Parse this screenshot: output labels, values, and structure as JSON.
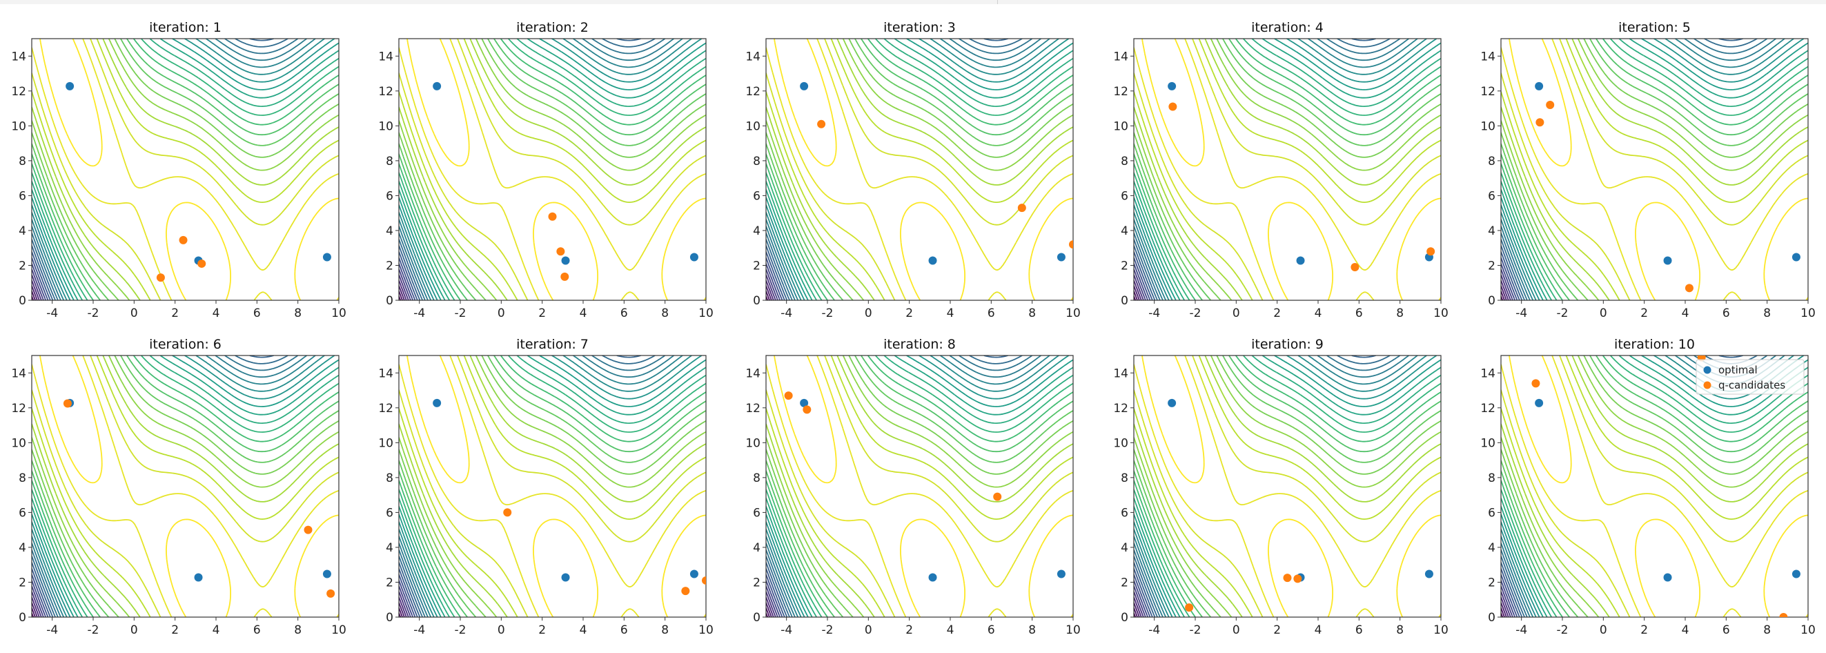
{
  "colors": {
    "optimal": "#1f77b4",
    "q_candidates": "#ff7f0e",
    "colormap": "viridis (reversed: low values yellow)"
  },
  "legend_labels": [
    "optimal",
    "q-candidates"
  ],
  "chart_data": [
    {
      "type": "contour+scatter",
      "title": "iteration: 1",
      "xlim": [
        -5,
        10
      ],
      "ylim": [
        0,
        15
      ],
      "xticks": [
        -4,
        -2,
        0,
        2,
        4,
        6,
        8,
        10
      ],
      "yticks": [
        0,
        2,
        4,
        6,
        8,
        10,
        12,
        14
      ],
      "series": [
        {
          "name": "optimal",
          "x": [
            -3.14159,
            3.14159,
            9.42478
          ],
          "y": [
            12.275,
            2.275,
            2.475
          ]
        },
        {
          "name": "q-candidates",
          "x": [
            1.3,
            2.4,
            3.3
          ],
          "y": [
            1.3,
            3.45,
            2.1
          ]
        }
      ]
    },
    {
      "type": "contour+scatter",
      "title": "iteration: 2",
      "xlim": [
        -5,
        10
      ],
      "ylim": [
        0,
        15
      ],
      "xticks": [
        -4,
        -2,
        0,
        2,
        4,
        6,
        8,
        10
      ],
      "yticks": [
        0,
        2,
        4,
        6,
        8,
        10,
        12,
        14
      ],
      "series": [
        {
          "name": "optimal",
          "x": [
            -3.14159,
            3.14159,
            9.42478
          ],
          "y": [
            12.275,
            2.275,
            2.475
          ]
        },
        {
          "name": "q-candidates",
          "x": [
            2.5,
            2.9,
            3.1
          ],
          "y": [
            4.8,
            2.8,
            1.35
          ]
        }
      ]
    },
    {
      "type": "contour+scatter",
      "title": "iteration: 3",
      "xlim": [
        -5,
        10
      ],
      "ylim": [
        0,
        15
      ],
      "xticks": [
        -4,
        -2,
        0,
        2,
        4,
        6,
        8,
        10
      ],
      "yticks": [
        0,
        2,
        4,
        6,
        8,
        10,
        12,
        14
      ],
      "series": [
        {
          "name": "optimal",
          "x": [
            -3.14159,
            3.14159,
            9.42478
          ],
          "y": [
            12.275,
            2.275,
            2.475
          ]
        },
        {
          "name": "q-candidates",
          "x": [
            -2.3,
            7.5,
            10.0
          ],
          "y": [
            10.1,
            5.3,
            3.2
          ]
        }
      ]
    },
    {
      "type": "contour+scatter",
      "title": "iteration: 4",
      "xlim": [
        -5,
        10
      ],
      "ylim": [
        0,
        15
      ],
      "xticks": [
        -4,
        -2,
        0,
        2,
        4,
        6,
        8,
        10
      ],
      "yticks": [
        0,
        2,
        4,
        6,
        8,
        10,
        12,
        14
      ],
      "series": [
        {
          "name": "optimal",
          "x": [
            -3.14159,
            3.14159,
            9.42478
          ],
          "y": [
            12.275,
            2.275,
            2.475
          ]
        },
        {
          "name": "q-candidates",
          "x": [
            -3.1,
            5.8,
            9.5
          ],
          "y": [
            11.1,
            1.9,
            2.8
          ]
        }
      ]
    },
    {
      "type": "contour+scatter",
      "title": "iteration: 5",
      "xlim": [
        -5,
        10
      ],
      "ylim": [
        0,
        15
      ],
      "xticks": [
        -4,
        -2,
        0,
        2,
        4,
        6,
        8,
        10
      ],
      "yticks": [
        0,
        2,
        4,
        6,
        8,
        10,
        12,
        14
      ],
      "series": [
        {
          "name": "optimal",
          "x": [
            -3.14159,
            3.14159,
            9.42478
          ],
          "y": [
            12.275,
            2.275,
            2.475
          ]
        },
        {
          "name": "q-candidates",
          "x": [
            -3.1,
            -2.6,
            4.2
          ],
          "y": [
            10.2,
            11.2,
            0.7
          ]
        }
      ]
    },
    {
      "type": "contour+scatter",
      "title": "iteration: 6",
      "xlim": [
        -5,
        10
      ],
      "ylim": [
        0,
        15
      ],
      "xticks": [
        -4,
        -2,
        0,
        2,
        4,
        6,
        8,
        10
      ],
      "yticks": [
        0,
        2,
        4,
        6,
        8,
        10,
        12,
        14
      ],
      "series": [
        {
          "name": "optimal",
          "x": [
            -3.14159,
            3.14159,
            9.42478
          ],
          "y": [
            12.275,
            2.275,
            2.475
          ]
        },
        {
          "name": "q-candidates",
          "x": [
            -3.25,
            8.5,
            9.6
          ],
          "y": [
            12.25,
            5.0,
            1.35
          ]
        }
      ]
    },
    {
      "type": "contour+scatter",
      "title": "iteration: 7",
      "xlim": [
        -5,
        10
      ],
      "ylim": [
        0,
        15
      ],
      "xticks": [
        -4,
        -2,
        0,
        2,
        4,
        6,
        8,
        10
      ],
      "yticks": [
        0,
        2,
        4,
        6,
        8,
        10,
        12,
        14
      ],
      "series": [
        {
          "name": "optimal",
          "x": [
            -3.14159,
            3.14159,
            9.42478
          ],
          "y": [
            12.275,
            2.275,
            2.475
          ]
        },
        {
          "name": "q-candidates",
          "x": [
            0.3,
            9.0,
            10.0
          ],
          "y": [
            6.0,
            1.5,
            2.1
          ]
        }
      ]
    },
    {
      "type": "contour+scatter",
      "title": "iteration: 8",
      "xlim": [
        -5,
        10
      ],
      "ylim": [
        0,
        15
      ],
      "xticks": [
        -4,
        -2,
        0,
        2,
        4,
        6,
        8,
        10
      ],
      "yticks": [
        0,
        2,
        4,
        6,
        8,
        10,
        12,
        14
      ],
      "series": [
        {
          "name": "optimal",
          "x": [
            -3.14159,
            3.14159,
            9.42478
          ],
          "y": [
            12.275,
            2.275,
            2.475
          ]
        },
        {
          "name": "q-candidates",
          "x": [
            -3.9,
            -3.0,
            6.3
          ],
          "y": [
            12.7,
            11.9,
            6.9
          ]
        }
      ]
    },
    {
      "type": "contour+scatter",
      "title": "iteration: 9",
      "xlim": [
        -5,
        10
      ],
      "ylim": [
        0,
        15
      ],
      "xticks": [
        -4,
        -2,
        0,
        2,
        4,
        6,
        8,
        10
      ],
      "yticks": [
        0,
        2,
        4,
        6,
        8,
        10,
        12,
        14
      ],
      "series": [
        {
          "name": "optimal",
          "x": [
            -3.14159,
            3.14159,
            9.42478
          ],
          "y": [
            12.275,
            2.275,
            2.475
          ]
        },
        {
          "name": "q-candidates",
          "x": [
            -2.3,
            2.5,
            3.0
          ],
          "y": [
            0.55,
            2.25,
            2.2
          ]
        }
      ]
    },
    {
      "type": "contour+scatter",
      "title": "iteration: 10",
      "xlim": [
        -5,
        10
      ],
      "ylim": [
        0,
        15
      ],
      "xticks": [
        -4,
        -2,
        0,
        2,
        4,
        6,
        8,
        10
      ],
      "yticks": [
        0,
        2,
        4,
        6,
        8,
        10,
        12,
        14
      ],
      "legend": "top-right",
      "series": [
        {
          "name": "optimal",
          "x": [
            -3.14159,
            3.14159,
            9.42478
          ],
          "y": [
            12.275,
            2.275,
            2.475
          ]
        },
        {
          "name": "q-candidates",
          "x": [
            -3.3,
            4.8,
            8.8
          ],
          "y": [
            13.4,
            14.9,
            0.0
          ]
        }
      ]
    }
  ]
}
